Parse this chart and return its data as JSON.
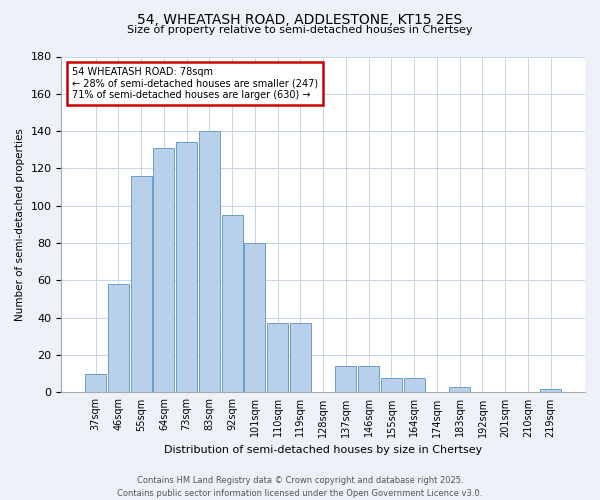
{
  "title1": "54, WHEATASH ROAD, ADDLESTONE, KT15 2ES",
  "title2": "Size of property relative to semi-detached houses in Chertsey",
  "xlabel": "Distribution of semi-detached houses by size in Chertsey",
  "ylabel": "Number of semi-detached properties",
  "categories": [
    "37sqm",
    "46sqm",
    "55sqm",
    "64sqm",
    "73sqm",
    "83sqm",
    "92sqm",
    "101sqm",
    "110sqm",
    "119sqm",
    "128sqm",
    "137sqm",
    "146sqm",
    "155sqm",
    "164sqm",
    "174sqm",
    "183sqm",
    "192sqm",
    "201sqm",
    "210sqm",
    "219sqm"
  ],
  "values": [
    10,
    58,
    116,
    131,
    134,
    140,
    95,
    80,
    37,
    37,
    0,
    14,
    14,
    8,
    8,
    0,
    3,
    0,
    0,
    0,
    2
  ],
  "bar_color": "#b8d0ea",
  "bar_edge_color": "#6a9fc8",
  "annotation_title": "54 WHEATASH ROAD: 78sqm",
  "annotation_line1": "← 28% of semi-detached houses are smaller (247)",
  "annotation_line2": "71% of semi-detached houses are larger (630) →",
  "annotation_box_facecolor": "#ffffff",
  "annotation_box_edgecolor": "#cc0000",
  "ylim": [
    0,
    180
  ],
  "yticks": [
    0,
    20,
    40,
    60,
    80,
    100,
    120,
    140,
    160,
    180
  ],
  "footer1": "Contains HM Land Registry data © Crown copyright and database right 2025.",
  "footer2": "Contains public sector information licensed under the Open Government Licence v3.0.",
  "bg_color": "#eef2f8",
  "plot_bg_color": "#ffffff",
  "grid_color": "#c8d4e8"
}
